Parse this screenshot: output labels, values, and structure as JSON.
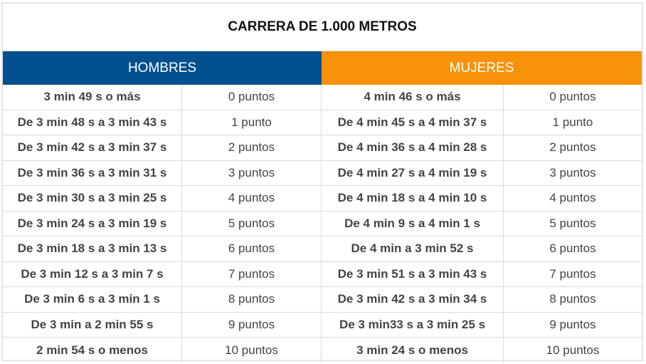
{
  "title": "CARRERA DE 1.000 METROS",
  "headers": {
    "men": "HOMBRES",
    "women": "MUJERES"
  },
  "colors": {
    "men_header": "#00508f",
    "women_header": "#f7920a"
  },
  "rows": [
    {
      "men_time": "3 min 49 s o más",
      "men_points": "0 puntos",
      "women_time": "4 min 46 s o más",
      "women_points": "0 puntos"
    },
    {
      "men_time": "De 3 min 48 s a 3 min 43 s",
      "men_points": "1 punto",
      "women_time": "De 4 min 45 s a 4 min 37 s",
      "women_points": "1 punto"
    },
    {
      "men_time": "De 3 min 42 s a 3 min 37 s",
      "men_points": "2 puntos",
      "women_time": "De 4 min 36 s a 4 min 28 s",
      "women_points": "2 puntos"
    },
    {
      "men_time": "De 3 min 36 s a 3 min 31 s",
      "men_points": "3 puntos",
      "women_time": "De 4 min 27 s a 4 min 19 s",
      "women_points": "3 puntos"
    },
    {
      "men_time": "De 3 min 30 s a 3 min 25 s",
      "men_points": "4 puntos",
      "women_time": "De 4 min 18 s a 4 min 10 s",
      "women_points": "4 puntos"
    },
    {
      "men_time": "De 3 min 24 s a 3 min 19 s",
      "men_points": "5 puntos",
      "women_time": "De 4 min 9 s a 4 min 1 s",
      "women_points": "5 puntos"
    },
    {
      "men_time": "De 3 min 18 s a 3 min 13 s",
      "men_points": "6 puntos",
      "women_time": "De 4 min a 3 min 52 s",
      "women_points": "6 puntos"
    },
    {
      "men_time": "De 3 min 12 s a 3 min 7 s",
      "men_points": "7 puntos",
      "women_time": "De 3 min 51 s a 3 min 43 s",
      "women_points": "7 puntos"
    },
    {
      "men_time": "De 3 min 6 s a 3 min 1 s",
      "men_points": "8 puntos",
      "women_time": "De 3 min 42 s a 3 min 34 s",
      "women_points": "8 puntos"
    },
    {
      "men_time": "De 3 min a 2 min 55 s",
      "men_points": "9 puntos",
      "women_time": "De 3 min33 s a 3 min 25 s",
      "women_points": "9 puntos"
    },
    {
      "men_time": "2 min 54 s o menos",
      "men_points": "10 puntos",
      "women_time": "3 min 24 s o menos",
      "women_points": "10 puntos"
    }
  ]
}
